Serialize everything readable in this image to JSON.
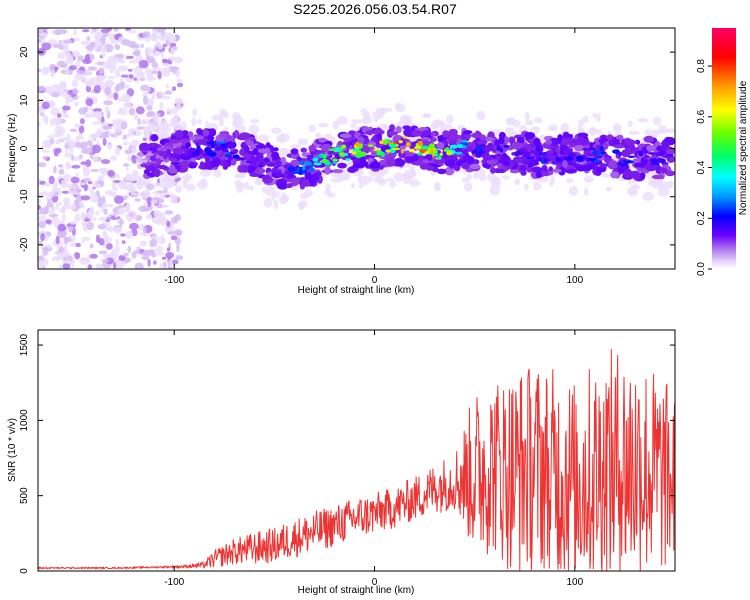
{
  "chart_data": [
    {
      "type": "heatmap",
      "title": "S225.2026.056.03.54.R07",
      "xlabel": "Height of straight line (km)",
      "ylabel": "Frequency (Hz)",
      "xlim": [
        -168,
        150
      ],
      "ylim": [
        -25,
        25
      ],
      "x_ticks": [
        -100,
        0,
        100
      ],
      "x_tick_labels": [
        "-100",
        "0",
        "100"
      ],
      "y_ticks": [
        -20,
        -10,
        0,
        10,
        20
      ],
      "y_tick_labels": [
        "-20",
        "-10",
        "0",
        "10",
        "20"
      ],
      "colorbar": {
        "label": "Normalized spectral amplitude",
        "range": [
          0,
          0.95
        ],
        "ticks": [
          0.0,
          0.2,
          0.4,
          0.6,
          0.8
        ],
        "tick_labels": [
          "0.0",
          "0.2",
          "0.4",
          "0.6",
          "0.8"
        ],
        "colormap": [
          "#ffffff",
          "#c9a6f5",
          "#8a2be2",
          "#5a00ff",
          "#0000ff",
          "#0099ff",
          "#00ffff",
          "#00ff66",
          "#66ff00",
          "#ffff00",
          "#ff9900",
          "#ff0000",
          "#ff0066"
        ]
      },
      "ridge": {
        "x": [
          -115,
          -100,
          -85,
          -75,
          -65,
          -55,
          -45,
          -35,
          -25,
          -15,
          -5,
          5,
          15,
          25,
          35,
          45,
          55,
          65,
          75,
          85,
          95,
          105,
          115,
          125,
          135,
          148
        ],
        "freq": [
          -2,
          -1,
          0,
          0,
          -1,
          -3,
          -5,
          -4,
          -2,
          -1,
          0,
          0,
          1,
          0,
          -1,
          0,
          -1,
          -1,
          -1,
          -2,
          -1,
          -1,
          -1,
          -2,
          -2,
          -2
        ],
        "amplitude": [
          0.1,
          0.25,
          0.3,
          0.4,
          0.3,
          0.25,
          0.3,
          0.4,
          0.6,
          0.75,
          0.85,
          0.8,
          0.9,
          0.85,
          0.75,
          0.5,
          0.3,
          0.3,
          0.3,
          0.35,
          0.35,
          0.3,
          0.4,
          0.35,
          0.3,
          0.3
        ]
      },
      "noise_region": {
        "x_from": -168,
        "x_to": -97
      }
    },
    {
      "type": "line",
      "xlabel": "Height of straight line (km)",
      "ylabel": "SNR (10 * v/v)",
      "xlim": [
        -168,
        150
      ],
      "ylim": [
        0,
        1600
      ],
      "x_ticks": [
        -100,
        0,
        100
      ],
      "x_tick_labels": [
        "-100",
        "0",
        "100"
      ],
      "y_ticks": [
        0,
        500,
        1000,
        1500
      ],
      "y_tick_labels": [
        "0",
        "500",
        "1000",
        "1500"
      ],
      "color": "#ee3333",
      "series": [
        {
          "name": "SNR",
          "x": [
            -168,
            -150,
            -130,
            -110,
            -95,
            -85,
            -80,
            -70,
            -60,
            -50,
            -40,
            -30,
            -20,
            -10,
            0,
            10,
            20,
            30,
            40,
            50,
            60,
            70,
            80,
            90,
            100,
            110,
            120,
            130,
            140,
            150
          ],
          "values": [
            20,
            20,
            20,
            25,
            30,
            40,
            80,
            130,
            150,
            170,
            220,
            260,
            300,
            350,
            380,
            420,
            480,
            550,
            600,
            650,
            700,
            650,
            700,
            650,
            600,
            650,
            700,
            700,
            650,
            600
          ],
          "spread": [
            5,
            5,
            5,
            5,
            10,
            20,
            60,
            90,
            110,
            120,
            130,
            140,
            140,
            140,
            140,
            140,
            150,
            170,
            200,
            550,
            600,
            700,
            700,
            700,
            700,
            750,
            800,
            800,
            700,
            600
          ]
        }
      ]
    }
  ]
}
